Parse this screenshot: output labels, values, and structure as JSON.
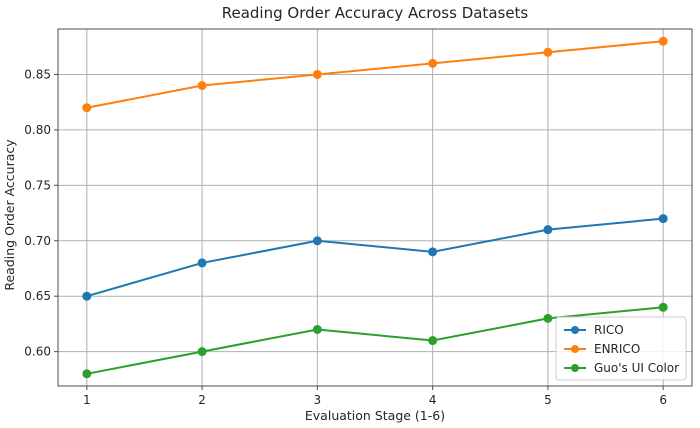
{
  "chart_data": {
    "type": "line",
    "title": "Reading Order Accuracy Across Datasets",
    "xlabel": "Evaluation Stage (1-6)",
    "ylabel": "Reading Order Accuracy",
    "x": [
      1,
      2,
      3,
      4,
      5,
      6
    ],
    "xlim": [
      0.75,
      6.25
    ],
    "ylim": [
      0.569,
      0.891
    ],
    "yticks": [
      0.6,
      0.65,
      0.7,
      0.75,
      0.8,
      0.85
    ],
    "yticklabels": [
      "0.60",
      "0.65",
      "0.70",
      "0.75",
      "0.80",
      "0.85"
    ],
    "xticklabels": [
      "1",
      "2",
      "3",
      "4",
      "5",
      "6"
    ],
    "grid": true,
    "legend_position": "lower-right",
    "series": [
      {
        "name": "RICO",
        "color": "#1f77b4",
        "values": [
          0.65,
          0.68,
          0.7,
          0.69,
          0.71,
          0.72
        ]
      },
      {
        "name": "ENRICO",
        "color": "#ff7f0e",
        "values": [
          0.82,
          0.84,
          0.85,
          0.86,
          0.87,
          0.88
        ]
      },
      {
        "name": "Guo's UI Color",
        "color": "#2ca02c",
        "values": [
          0.58,
          0.6,
          0.62,
          0.61,
          0.63,
          0.64
        ]
      }
    ]
  }
}
